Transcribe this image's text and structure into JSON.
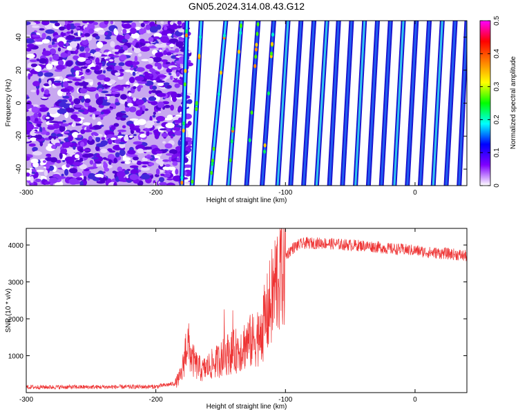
{
  "title": "GN05.2024.314.08.43.G12",
  "chart_data": [
    {
      "type": "heatmap",
      "xlabel": "Height of straight line (km)",
      "ylabel": "Frequency (Hz)",
      "xlim": [
        -300,
        40
      ],
      "ylim": [
        -50,
        50
      ],
      "xticks": [
        -300,
        -200,
        -100,
        0
      ],
      "yticks": [
        -40,
        -20,
        0,
        20,
        40
      ],
      "colorbar": {
        "label": "Normalized spectral amplitude",
        "range": [
          0,
          0.5
        ],
        "ticks": [
          0,
          0.1,
          0.2,
          0.3,
          0.4,
          0.5
        ],
        "colors": [
          "#ffffff",
          "#8000ff",
          "#0000ff",
          "#00ffff",
          "#00ff00",
          "#ffff00",
          "#ff8000",
          "#ff0000",
          "#ff00ff"
        ]
      },
      "noise_region_x": [
        -300,
        -178
      ],
      "stripes": [
        {
          "x_at_freq_min": -180,
          "x_at_freq_max": -176
        },
        {
          "x_at_freq_min": -172,
          "x_at_freq_max": -165
        },
        {
          "x_at_freq_min": -158,
          "x_at_freq_max": -146
        },
        {
          "x_at_freq_min": -144,
          "x_at_freq_max": -134
        },
        {
          "x_at_freq_min": -130,
          "x_at_freq_max": -121
        },
        {
          "x_at_freq_min": -118,
          "x_at_freq_max": -109
        },
        {
          "x_at_freq_min": -106,
          "x_at_freq_max": -98
        },
        {
          "x_at_freq_min": -96,
          "x_at_freq_max": -88
        },
        {
          "x_at_freq_min": -86,
          "x_at_freq_max": -78
        },
        {
          "x_at_freq_min": -76,
          "x_at_freq_max": -68
        },
        {
          "x_at_freq_min": -66,
          "x_at_freq_max": -59
        },
        {
          "x_at_freq_min": -56,
          "x_at_freq_max": -49
        },
        {
          "x_at_freq_min": -46,
          "x_at_freq_max": -39
        },
        {
          "x_at_freq_min": -36,
          "x_at_freq_max": -29
        },
        {
          "x_at_freq_min": -26,
          "x_at_freq_max": -19
        },
        {
          "x_at_freq_min": -16,
          "x_at_freq_max": -9
        },
        {
          "x_at_freq_min": -6,
          "x_at_freq_max": 1
        },
        {
          "x_at_freq_min": 4,
          "x_at_freq_max": 11
        },
        {
          "x_at_freq_min": 14,
          "x_at_freq_max": 21
        },
        {
          "x_at_freq_min": 24,
          "x_at_freq_max": 31
        },
        {
          "x_at_freq_min": 34,
          "x_at_freq_max": 40
        }
      ]
    },
    {
      "type": "line",
      "xlabel": "Height of straight line (km)",
      "ylabel": "SNR (10 * v/v)",
      "xlim": [
        -300,
        40
      ],
      "ylim": [
        0,
        4450
      ],
      "xticks": [
        -300,
        -200,
        -100,
        0
      ],
      "yticks": [
        1000,
        2000,
        3000,
        4000
      ],
      "series": [
        {
          "color": "#ee3333",
          "x": [
            -300,
            -250,
            -200,
            -185,
            -180,
            -176,
            -172,
            -168,
            -164,
            -160,
            -155,
            -150,
            -145,
            -140,
            -135,
            -130,
            -125,
            -120,
            -115,
            -110,
            -105,
            -100,
            -95,
            -90,
            -85,
            -80,
            -70,
            -60,
            -50,
            -40,
            -30,
            -20,
            -10,
            0,
            10,
            20,
            30,
            40
          ],
          "y": [
            150,
            150,
            160,
            250,
            500,
            1400,
            900,
            700,
            600,
            700,
            800,
            900,
            1050,
            1100,
            1200,
            1350,
            1400,
            1600,
            2000,
            2600,
            3300,
            3700,
            3900,
            4000,
            4050,
            4050,
            4050,
            4020,
            4000,
            3980,
            3950,
            3900,
            3880,
            3850,
            3800,
            3780,
            3750,
            3700
          ]
        }
      ]
    }
  ]
}
